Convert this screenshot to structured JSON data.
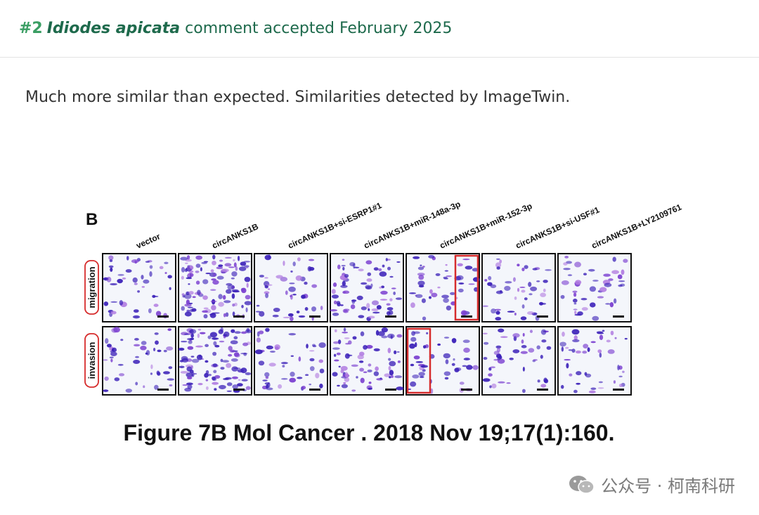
{
  "header": {
    "number": "#2",
    "species": "Idiodes apicata",
    "status_text": "comment accepted February 2025"
  },
  "comment": {
    "text": "Much more similar than expected. Similarities detected by ImageTwin."
  },
  "figure": {
    "panel_label": "B",
    "columns": [
      "vector",
      "circANKS1B",
      "circANKS1B+si-ESRP1#1",
      "circANKS1B+miR-148a-3p",
      "circANKS1B+miR-152-3p",
      "circANKS1B+si-USF#1",
      "circANKS1B+LY2109761"
    ],
    "rows": [
      "migration",
      "invasion"
    ],
    "highlight_color": "#d62c2c",
    "stain_color": "#3a1fb8"
  },
  "caption": "Figure 7B Mol Cancer . 2018 Nov 19;17(1):160.",
  "watermark": {
    "icon": "wechat-icon",
    "text": "公众号 · 柯南科研"
  }
}
